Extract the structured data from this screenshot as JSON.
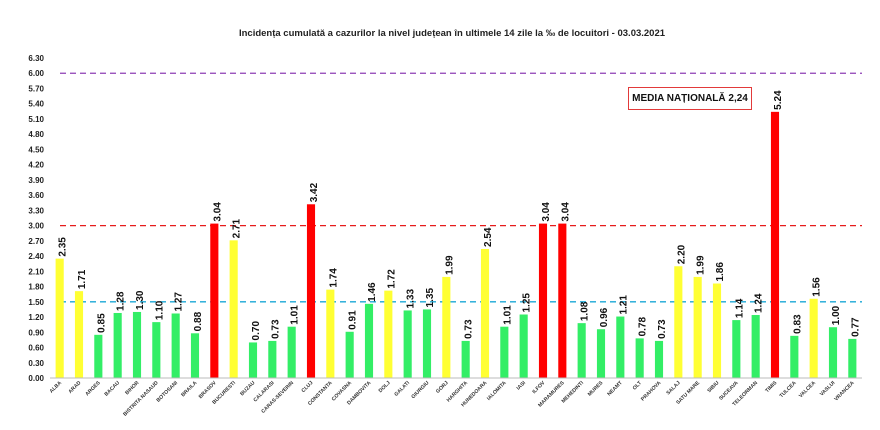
{
  "chart_data": {
    "type": "bar",
    "title": "Incidența cumulată a cazurilor la nivel județean în ultimele 14 zile la ‰ de locuitori - 03.03.2021",
    "xlabel": "",
    "ylabel": "",
    "ylim": [
      0,
      6.3
    ],
    "yticks": [
      "0.00",
      "0.30",
      "0.60",
      "0.90",
      "1.20",
      "1.50",
      "1.80",
      "2.10",
      "2.40",
      "2.70",
      "3.00",
      "3.30",
      "3.60",
      "3.90",
      "4.20",
      "4.50",
      "4.80",
      "5.10",
      "5.40",
      "5.70",
      "6.00",
      "6.30"
    ],
    "grid": false,
    "categories": [
      "ALBA",
      "ARAD",
      "ARGES",
      "BACAU",
      "BIHOR",
      "BISTRITA NASAUD",
      "BOTOSANI",
      "BRAILA",
      "BRASOV",
      "BUCURESTI",
      "BUZAU",
      "CALARASI",
      "CARAS-SEVERIN",
      "CLUJ",
      "CONSTANTA",
      "COVASNA",
      "DAMBOVITA",
      "DOLJ",
      "GALATI",
      "GIURGIU",
      "GORJ",
      "HARGHITA",
      "HUNEDOARA",
      "IALOMITA",
      "IASI",
      "ILFOV",
      "MARAMURES",
      "MEHEDINTI",
      "MURES",
      "NEAMT",
      "OLT",
      "PRAHOVA",
      "SALAJ",
      "SATU MARE",
      "SIBIU",
      "SUCEAVA",
      "TELEORMAN",
      "TIMIS",
      "TULCEA",
      "VALCEA",
      "VASLUI",
      "VRANCEA"
    ],
    "values": [
      2.35,
      1.71,
      0.85,
      1.28,
      1.3,
      1.1,
      1.27,
      0.88,
      3.04,
      2.71,
      0.7,
      0.73,
      1.01,
      3.42,
      1.74,
      0.91,
      1.46,
      1.72,
      1.33,
      1.35,
      1.99,
      0.73,
      2.54,
      1.01,
      1.25,
      3.04,
      3.04,
      1.08,
      0.96,
      1.21,
      0.78,
      0.73,
      2.2,
      1.99,
      1.86,
      1.14,
      1.24,
      5.24,
      0.83,
      1.56,
      1.0,
      0.77
    ],
    "value_labels": [
      "2.35",
      "1.71",
      "0.85",
      "1.28",
      "1.30",
      "1.10",
      "1.27",
      "0.88",
      "3.04",
      "2.71",
      "0.70",
      "0.73",
      "1.01",
      "3.42",
      "1.74",
      "0.91",
      "1.46",
      "1.72",
      "1.33",
      "1.35",
      "1.99",
      "0.73",
      "2.54",
      "1.01",
      "1.25",
      "3.04",
      "3.04",
      "1.08",
      "0.96",
      "1.21",
      "0.78",
      "0.73",
      "2.20",
      "1.99",
      "1.86",
      "1.14",
      "1.24",
      "5.24",
      "0.83",
      "1.56",
      "1.00",
      "0.77"
    ],
    "thresholds": [
      {
        "value": 6.0,
        "color": "#8e3fb5"
      },
      {
        "value": 3.0,
        "color": "#e51c1c"
      },
      {
        "value": 1.5,
        "color": "#1aa7d6"
      }
    ],
    "color_rules": {
      "high": "#ff0000",
      "medium": "#ffff33",
      "low": "#33ee66"
    },
    "annotation": "MEDIA NAȚIONALĂ 2,24"
  }
}
